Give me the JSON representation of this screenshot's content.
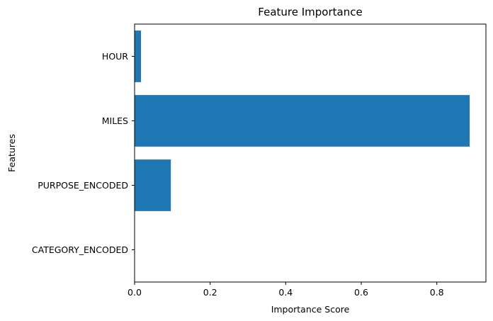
{
  "chart_data": {
    "type": "bar",
    "orientation": "horizontal",
    "title": "Feature Importance",
    "xlabel": "Importance Score",
    "ylabel": "Features",
    "categories": [
      "CATEGORY_ENCODED",
      "PURPOSE_ENCODED",
      "MILES",
      "HOUR"
    ],
    "values": [
      0.0,
      0.096,
      0.887,
      0.017
    ],
    "xlim": [
      0,
      0.93
    ],
    "xticks": [
      0.0,
      0.2,
      0.4,
      0.6,
      0.8
    ],
    "xtick_labels": [
      "0.0",
      "0.2",
      "0.4",
      "0.6",
      "0.8"
    ],
    "bar_color": "#1f77b4",
    "grid": false,
    "legend": false
  }
}
